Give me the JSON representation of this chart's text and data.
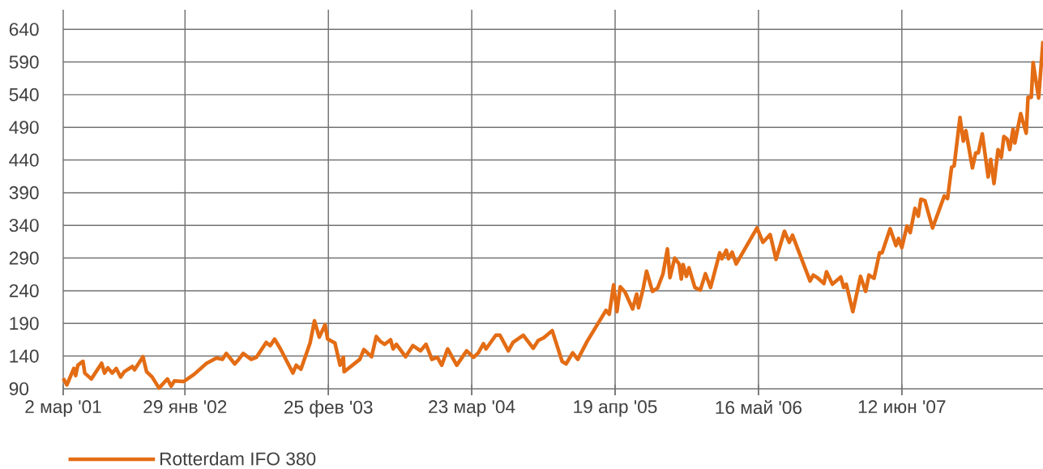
{
  "chart_data": {
    "type": "line",
    "x": [
      "2001-03-02",
      "2001-03-12",
      "2001-03-31",
      "2001-04-05",
      "2001-04-11",
      "2001-04-25",
      "2001-04-30",
      "2001-05-18",
      "2001-06-15",
      "2001-06-23",
      "2001-07-02",
      "2001-07-14",
      "2001-07-25",
      "2001-08-06",
      "2001-08-16",
      "2001-09-07",
      "2001-09-13",
      "2001-10-06",
      "2001-10-16",
      "2001-10-31",
      "2001-11-19",
      "2001-12-12",
      "2001-12-22",
      "2001-12-31",
      "2002-01-25",
      "2002-02-23",
      "2002-03-29",
      "2002-04-25",
      "2002-05-11",
      "2002-05-22",
      "2002-06-14",
      "2002-06-25",
      "2002-07-07",
      "2002-07-29",
      "2002-08-12",
      "2002-09-08",
      "2002-09-19",
      "2002-10-01",
      "2002-10-17",
      "2002-11-20",
      "2002-11-29",
      "2002-12-12",
      "2003-01-06",
      "2003-01-18",
      "2003-01-31",
      "2003-02-16",
      "2003-02-23",
      "2003-03-15",
      "2003-03-29",
      "2003-04-07",
      "2003-04-09",
      "2003-05-22",
      "2003-06-02",
      "2003-06-23",
      "2003-07-06",
      "2003-07-16",
      "2003-07-29",
      "2003-08-14",
      "2003-08-21",
      "2003-08-30",
      "2003-09-24",
      "2003-10-14",
      "2003-11-04",
      "2003-11-19",
      "2003-12-05",
      "2003-12-20",
      "2004-01-01",
      "2004-01-17",
      "2004-02-11",
      "2004-03-09",
      "2004-03-28",
      "2004-04-10",
      "2004-04-24",
      "2004-05-01",
      "2004-05-28",
      "2004-06-08",
      "2004-07-01",
      "2004-07-14",
      "2004-08-11",
      "2004-09-07",
      "2004-09-21",
      "2004-10-06",
      "2004-10-29",
      "2004-11-25",
      "2004-12-06",
      "2004-12-24",
      "2005-01-07",
      "2005-02-01",
      "2005-03-25",
      "2005-04-03",
      "2005-04-15",
      "2005-04-24",
      "2005-05-03",
      "2005-05-16",
      "2005-06-06",
      "2005-06-17",
      "2005-06-22",
      "2005-07-05",
      "2005-07-14",
      "2005-07-30",
      "2005-08-13",
      "2005-08-28",
      "2005-09-09",
      "2005-09-16",
      "2005-09-29",
      "2005-10-11",
      "2005-10-17",
      "2005-10-22",
      "2005-10-31",
      "2005-11-07",
      "2005-11-23",
      "2005-12-08",
      "2005-12-22",
      "2006-01-05",
      "2006-01-30",
      "2006-02-05",
      "2006-02-17",
      "2006-02-23",
      "2006-03-05",
      "2006-03-16",
      "2006-05-12",
      "2006-05-28",
      "2006-06-17",
      "2006-07-03",
      "2006-07-26",
      "2006-08-08",
      "2006-08-17",
      "2006-10-04",
      "2006-10-13",
      "2006-10-24",
      "2006-11-11",
      "2006-11-18",
      "2006-12-04",
      "2006-12-27",
      "2007-01-04",
      "2007-01-11",
      "2007-01-29",
      "2007-02-19",
      "2007-03-05",
      "2007-03-14",
      "2007-03-28",
      "2007-04-12",
      "2007-04-19",
      "2007-05-11",
      "2007-05-27",
      "2007-06-03",
      "2007-06-12",
      "2007-06-26",
      "2007-07-05",
      "2007-07-18",
      "2007-07-27",
      "2007-08-03",
      "2007-08-14",
      "2007-09-04",
      "2007-10-06",
      "2007-10-15",
      "2007-10-26",
      "2007-11-02",
      "2007-11-18",
      "2007-11-27",
      "2007-12-04",
      "2007-12-22",
      "2007-12-31",
      "2008-01-07",
      "2008-01-18",
      "2008-02-03",
      "2008-02-10",
      "2008-02-19",
      "2008-03-01",
      "2008-03-10",
      "2008-03-17",
      "2008-03-26",
      "2008-04-02",
      "2008-04-11",
      "2008-04-16",
      "2008-05-02",
      "2008-05-17",
      "2008-05-22",
      "2008-05-31",
      "2008-06-05",
      "2008-06-20",
      "2008-07-02"
    ],
    "series": [
      {
        "name": "Rotterdam IFO 380",
        "color": "#e36c14",
        "values": [
          106,
          96,
          121,
          110,
          126,
          132,
          114,
          105,
          129,
          114,
          122,
          114,
          121,
          108,
          116,
          124,
          119,
          139,
          116,
          108,
          91,
          105,
          94,
          102,
          101,
          112,
          129,
          137,
          135,
          144,
          128,
          135,
          144,
          135,
          138,
          161,
          156,
          166,
          151,
          114,
          126,
          120,
          160,
          194,
          169,
          188,
          166,
          160,
          126,
          138,
          116,
          135,
          150,
          139,
          170,
          163,
          158,
          165,
          151,
          158,
          139,
          156,
          148,
          158,
          135,
          138,
          126,
          151,
          126,
          148,
          138,
          145,
          159,
          151,
          172,
          172,
          148,
          161,
          172,
          152,
          164,
          168,
          179,
          132,
          128,
          145,
          135,
          162,
          210,
          204,
          249,
          208,
          246,
          238,
          212,
          235,
          214,
          244,
          270,
          239,
          244,
          266,
          304,
          260,
          290,
          281,
          258,
          280,
          262,
          275,
          245,
          241,
          266,
          245,
          298,
          289,
          302,
          289,
          299,
          281,
          336,
          314,
          326,
          288,
          331,
          314,
          325,
          255,
          264,
          260,
          251,
          269,
          250,
          261,
          245,
          250,
          208,
          262,
          239,
          264,
          259,
          298,
          298,
          335,
          309,
          320,
          306,
          339,
          329,
          366,
          354,
          380,
          378,
          336,
          385,
          381,
          429,
          431,
          505,
          469,
          485,
          428,
          451,
          451,
          480,
          414,
          441,
          404,
          456,
          444,
          476,
          472,
          456,
          487,
          466,
          511,
          481,
          536,
          536,
          589,
          535,
          622
        ]
      }
    ],
    "xlim": [
      "2001-03-02",
      "2008-07-02"
    ],
    "xticks": [
      {
        "value": "2001-03-02",
        "label": "2 мар '01"
      },
      {
        "value": "2002-01-29",
        "label": "29 янв '02"
      },
      {
        "value": "2003-02-25",
        "label": "25 фев '03"
      },
      {
        "value": "2004-03-23",
        "label": "23 мар '04"
      },
      {
        "value": "2005-04-19",
        "label": "19 апр '05"
      },
      {
        "value": "2006-05-16",
        "label": "16 май '06"
      },
      {
        "value": "2007-06-12",
        "label": "12 июн '07"
      }
    ],
    "ylim": [
      80,
      670
    ],
    "yticks": [
      90,
      140,
      190,
      240,
      290,
      340,
      390,
      440,
      490,
      540,
      590,
      640
    ],
    "grid": true,
    "legend": "bottom left",
    "marker": "none",
    "line_style": "solid"
  }
}
